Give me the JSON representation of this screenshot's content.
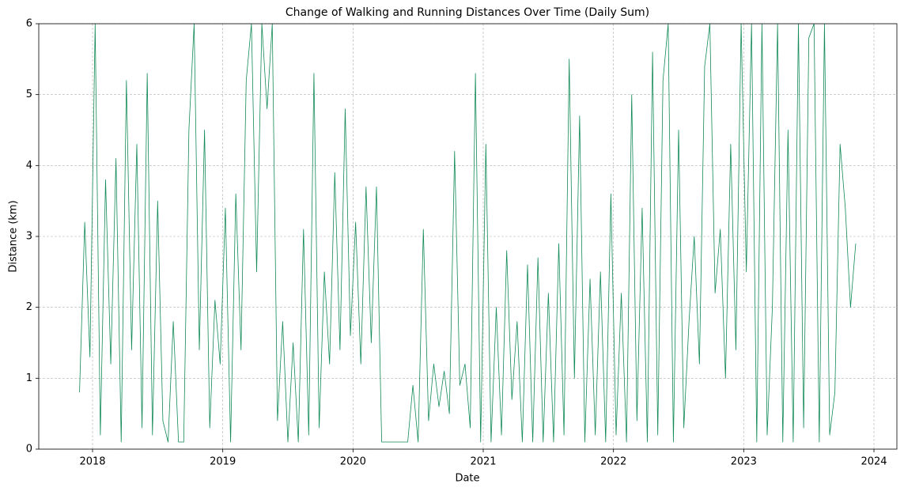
{
  "chart_data": {
    "type": "line",
    "title": "Change of Walking and Running Distances Over Time (Daily Sum)",
    "x_label": "Date",
    "y_label": "Distance (km)",
    "color": "#128a58",
    "x": [
      2017.9,
      2017.94,
      2017.98,
      2018.02,
      2018.06,
      2018.1,
      2018.14,
      2018.18,
      2018.22,
      2018.26,
      2018.3,
      2018.34,
      2018.38,
      2018.42,
      2018.46,
      2018.5,
      2018.54,
      2018.58,
      2018.62,
      2018.66,
      2018.7,
      2018.74,
      2018.78,
      2018.82,
      2018.86,
      2018.9,
      2018.94,
      2018.98,
      2019.02,
      2019.06,
      2019.1,
      2019.14,
      2019.18,
      2019.22,
      2019.26,
      2019.3,
      2019.34,
      2019.38,
      2019.42,
      2019.46,
      2019.5,
      2019.54,
      2019.58,
      2019.62,
      2019.66,
      2019.7,
      2019.74,
      2019.78,
      2019.82,
      2019.86,
      2019.9,
      2019.94,
      2019.98,
      2020.02,
      2020.06,
      2020.1,
      2020.14,
      2020.18,
      2020.22,
      2020.26,
      2020.3,
      2020.34,
      2020.38,
      2020.42,
      2020.46,
      2020.5,
      2020.54,
      2020.58,
      2020.62,
      2020.66,
      2020.7,
      2020.74,
      2020.78,
      2020.82,
      2020.86,
      2020.9,
      2020.94,
      2020.98,
      2021.02,
      2021.06,
      2021.1,
      2021.14,
      2021.18,
      2021.22,
      2021.26,
      2021.3,
      2021.34,
      2021.38,
      2021.42,
      2021.46,
      2021.5,
      2021.54,
      2021.58,
      2021.62,
      2021.66,
      2021.7,
      2021.74,
      2021.78,
      2021.82,
      2021.86,
      2021.9,
      2021.94,
      2021.98,
      2022.02,
      2022.06,
      2022.1,
      2022.14,
      2022.18,
      2022.22,
      2022.26,
      2022.3,
      2022.34,
      2022.38,
      2022.42,
      2022.46,
      2022.5,
      2022.54,
      2022.58,
      2022.62,
      2022.66,
      2022.7,
      2022.74,
      2022.78,
      2022.82,
      2022.86,
      2022.9,
      2022.94,
      2022.98,
      2023.02,
      2023.06,
      2023.1,
      2023.14,
      2023.18,
      2023.22,
      2023.26,
      2023.3,
      2023.34,
      2023.38,
      2023.42,
      2023.46,
      2023.5,
      2023.54,
      2023.58,
      2023.62,
      2023.66,
      2023.7,
      2023.74,
      2023.78,
      2023.82,
      2023.86
    ],
    "values": [
      0.8,
      3.2,
      1.3,
      6,
      0.2,
      3.8,
      1.2,
      4.1,
      0.1,
      5.2,
      1.4,
      4.3,
      0.3,
      5.3,
      0.2,
      3.5,
      0.4,
      0.1,
      1.8,
      0.1,
      0.1,
      4.5,
      6,
      1.4,
      4.5,
      0.3,
      2.1,
      1.2,
      3.4,
      0.1,
      3.6,
      1.4,
      5.2,
      6,
      2.5,
      6,
      4.8,
      6,
      0.4,
      1.8,
      0.1,
      1.5,
      0.1,
      3.1,
      0.2,
      5.3,
      0.3,
      2.5,
      1.2,
      3.9,
      1.4,
      4.8,
      1.6,
      3.2,
      1.2,
      3.7,
      1.5,
      3.7,
      0.1,
      0.1,
      0.1,
      0.1,
      0.1,
      0.1,
      0.9,
      0.1,
      3.1,
      0.4,
      1.2,
      0.6,
      1.1,
      0.5,
      4.2,
      0.9,
      1.2,
      0.3,
      5.3,
      0.1,
      4.3,
      0.1,
      2.0,
      0.2,
      2.8,
      0.7,
      1.8,
      0.1,
      2.6,
      0.1,
      2.7,
      0.1,
      2.2,
      0.1,
      2.9,
      0.2,
      5.5,
      1.0,
      4.7,
      0.1,
      2.4,
      0.2,
      2.5,
      0.1,
      3.6,
      0.2,
      2.2,
      0.1,
      5.0,
      0.4,
      3.4,
      0.1,
      5.6,
      0.2,
      5.2,
      6,
      0.1,
      4.5,
      0.3,
      1.8,
      3.0,
      1.2,
      5.4,
      6,
      2.2,
      3.1,
      1.0,
      4.3,
      1.4,
      6,
      2.5,
      6,
      0.1,
      6,
      0.2,
      2.0,
      6,
      0.1,
      4.5,
      0.1,
      6,
      0.3,
      5.8,
      6,
      0.1,
      6,
      0.2,
      0.8,
      4.3,
      3.4,
      2.0,
      2.9
    ],
    "xlim": [
      2017.587,
      2024.176
    ],
    "xticks": [
      2018,
      2019,
      2020,
      2021,
      2022,
      2023,
      2024
    ],
    "ylim": [
      0,
      6
    ],
    "yticks": [
      0,
      1,
      2,
      3,
      4,
      5,
      6
    ],
    "grid": true
  }
}
